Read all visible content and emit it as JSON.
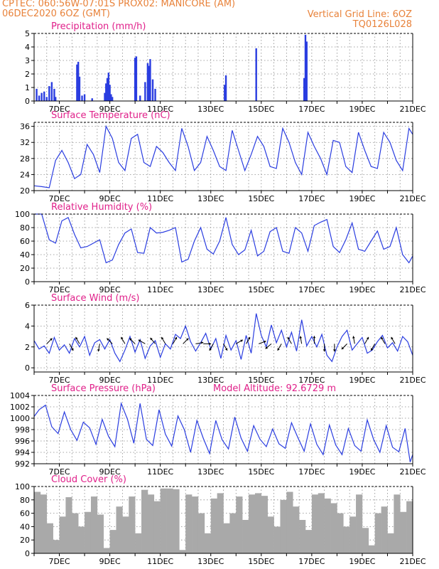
{
  "header": {
    "line1_left": "CPTEC:   060:56W-07:01S   PROX02: MANICORE (AM)",
    "line2_left": "06DEC2020 6OZ (GMT)",
    "line2_right": "Vertical Grid Line: 6OZ",
    "line3_right": "TQ0126L028"
  },
  "colors": {
    "header": "#e8823a",
    "title": "#e0208a",
    "series": "#2a3de0",
    "cloud": "#a9a9a9",
    "arrow": "#000000"
  },
  "chart_data": [
    {
      "type": "bar",
      "title": "Precipitation (mm/h)",
      "x_labels": [
        "7DEC",
        "9DEC",
        "11DEC",
        "13DEC",
        "15DEC",
        "17DEC",
        "19DEC",
        "21DEC"
      ],
      "ylim": [
        0,
        5
      ],
      "yticks": [
        "0",
        "1",
        "2",
        "3",
        "4",
        "5"
      ],
      "x": [
        6.1,
        6.2,
        6.3,
        6.4,
        6.5,
        6.6,
        6.7,
        6.8,
        6.85,
        7.7,
        7.75,
        7.8,
        7.9,
        8.0,
        8.3,
        8.8,
        8.85,
        8.9,
        8.95,
        9.0,
        9.05,
        9.1,
        10.0,
        10.05,
        10.2,
        10.4,
        10.5,
        10.55,
        10.6,
        10.7,
        10.8,
        13.55,
        13.6,
        14.8,
        16.7,
        16.75,
        16.8
      ],
      "values": [
        0.9,
        0.4,
        0.6,
        0.7,
        0.3,
        1.1,
        1.4,
        0.9,
        0.3,
        2.7,
        2.9,
        1.8,
        0.4,
        0.5,
        0.2,
        0.6,
        1.3,
        1.7,
        2.1,
        1.2,
        0.5,
        0.3,
        3.2,
        3.3,
        0.4,
        1.4,
        2.8,
        2.6,
        3.1,
        1.6,
        0.9,
        1.2,
        1.9,
        3.9,
        1.7,
        4.9,
        4.4
      ],
      "xlim": [
        6,
        21
      ]
    },
    {
      "type": "line",
      "title": "Surface Temperature (nC)",
      "x_labels": [
        "7DEC",
        "9DEC",
        "11DEC",
        "13DEC",
        "15DEC",
        "17DEC",
        "19DEC",
        "21DEC"
      ],
      "ylim": [
        20,
        37
      ],
      "yticks": [
        "20",
        "24",
        "28",
        "32",
        "36"
      ],
      "x": [
        6.0,
        6.3,
        6.6,
        6.85,
        7.1,
        7.35,
        7.6,
        7.85,
        8.1,
        8.35,
        8.6,
        8.85,
        9.1,
        9.35,
        9.6,
        9.85,
        10.1,
        10.35,
        10.6,
        10.85,
        11.1,
        11.35,
        11.6,
        11.85,
        12.1,
        12.35,
        12.6,
        12.85,
        13.1,
        13.35,
        13.6,
        13.85,
        14.1,
        14.35,
        14.6,
        14.85,
        15.1,
        15.35,
        15.6,
        15.85,
        16.1,
        16.35,
        16.6,
        16.85,
        17.1,
        17.35,
        17.6,
        17.85,
        18.1,
        18.35,
        18.6,
        18.85,
        19.1,
        19.35,
        19.6,
        19.85,
        20.1,
        20.35,
        20.6,
        20.85,
        21.0
      ],
      "values": [
        21.2,
        21,
        20.7,
        27.5,
        30,
        27,
        23,
        24,
        31.5,
        29,
        24.5,
        36,
        33,
        27,
        25,
        33,
        34,
        27,
        26,
        31,
        29.5,
        27,
        25,
        35.5,
        31,
        25,
        27,
        33.5,
        30,
        26,
        25,
        35,
        30,
        25,
        29,
        33.5,
        31,
        26,
        25.5,
        35.5,
        32,
        27,
        24,
        34.5,
        31,
        28,
        24,
        32.5,
        32,
        26,
        24.5,
        34.5,
        30,
        26,
        25.5,
        34.5,
        32,
        27.5,
        25,
        35.5,
        34
      ],
      "xlim": [
        6,
        21
      ]
    },
    {
      "type": "line",
      "title": "Relative Humidity (%)",
      "x_labels": [
        "7DEC",
        "9DEC",
        "11DEC",
        "13DEC",
        "15DEC",
        "17DEC",
        "19DEC",
        "21DEC"
      ],
      "ylim": [
        0,
        100
      ],
      "yticks": [
        "0",
        "20",
        "40",
        "60",
        "80",
        "100"
      ],
      "x": [
        6.0,
        6.3,
        6.6,
        6.85,
        7.1,
        7.35,
        7.6,
        7.85,
        8.1,
        8.35,
        8.6,
        8.85,
        9.1,
        9.35,
        9.6,
        9.85,
        10.1,
        10.35,
        10.6,
        10.85,
        11.1,
        11.35,
        11.6,
        11.85,
        12.1,
        12.35,
        12.6,
        12.85,
        13.1,
        13.35,
        13.6,
        13.85,
        14.1,
        14.35,
        14.6,
        14.85,
        15.1,
        15.35,
        15.6,
        15.85,
        16.1,
        16.35,
        16.6,
        16.85,
        17.1,
        17.35,
        17.6,
        17.85,
        18.1,
        18.35,
        18.6,
        18.85,
        19.1,
        19.35,
        19.6,
        19.85,
        20.1,
        20.35,
        20.6,
        20.85,
        21.0
      ],
      "values": [
        100,
        100,
        62,
        57,
        90,
        95,
        70,
        50,
        52,
        57,
        62,
        28,
        32,
        55,
        72,
        78,
        43,
        42,
        80,
        72,
        73,
        76,
        80,
        29,
        33,
        60,
        80,
        48,
        41,
        60,
        95,
        55,
        40,
        47,
        76,
        38,
        45,
        74,
        80,
        45,
        42,
        80,
        72,
        45,
        83,
        88,
        92,
        52,
        43,
        62,
        87,
        48,
        45,
        60,
        75,
        48,
        52,
        80,
        40,
        28,
        38
      ],
      "xlim": [
        6,
        21
      ]
    },
    {
      "type": "line",
      "title": "Surface Wind (m/s)",
      "x_labels": [
        "7DEC",
        "9DEC",
        "11DEC",
        "13DEC",
        "15DEC",
        "17DEC",
        "19DEC",
        "21DEC"
      ],
      "ylim": [
        -0.4,
        6
      ],
      "yticks": [
        "0",
        "2",
        "4",
        "6"
      ],
      "x": [
        6.0,
        6.2,
        6.4,
        6.6,
        6.8,
        7.0,
        7.2,
        7.4,
        7.6,
        7.8,
        8.0,
        8.2,
        8.4,
        8.6,
        8.8,
        9.0,
        9.2,
        9.4,
        9.6,
        9.8,
        10.0,
        10.2,
        10.4,
        10.6,
        10.8,
        11.0,
        11.2,
        11.4,
        11.6,
        11.8,
        12.0,
        12.2,
        12.4,
        12.6,
        12.8,
        13.0,
        13.2,
        13.4,
        13.6,
        13.8,
        14.0,
        14.2,
        14.4,
        14.6,
        14.8,
        15.0,
        15.2,
        15.4,
        15.6,
        15.8,
        16.0,
        16.2,
        16.4,
        16.6,
        16.8,
        17.0,
        17.2,
        17.4,
        17.6,
        17.8,
        18.0,
        18.2,
        18.4,
        18.6,
        18.8,
        19.0,
        19.2,
        19.4,
        19.6,
        19.8,
        20.0,
        20.2,
        20.4,
        20.6,
        20.8,
        21.0
      ],
      "values": [
        2.6,
        1.8,
        2.1,
        1.4,
        2.9,
        1.7,
        2.2,
        1.4,
        2.8,
        2.0,
        3.0,
        1.2,
        2.4,
        2.7,
        1.8,
        2.7,
        1.4,
        0.6,
        1.7,
        3.0,
        1.5,
        2.7,
        0.9,
        2.1,
        2.6,
        1.0,
        2.3,
        1.8,
        3.2,
        2.8,
        4.0,
        2.5,
        1.6,
        2.4,
        3.3,
        1.8,
        2.8,
        0.9,
        3.1,
        1.7,
        2.6,
        0.8,
        3.1,
        1.4,
        5.2,
        3.1,
        2.0,
        4.1,
        2.4,
        3.6,
        2.0,
        3.4,
        1.6,
        4.6,
        2.1,
        3.0,
        2.0,
        3.2,
        1.2,
        0.6,
        2.0,
        3.0,
        3.6,
        1.7,
        2.3,
        2.9,
        1.4,
        1.7,
        2.5,
        3.1,
        1.9,
        2.4,
        1.6,
        3.0,
        2.5,
        1.2
      ],
      "arrows_x": [
        6.5,
        7.4,
        7.8,
        8.6,
        9.1,
        9.6,
        10.0,
        10.4,
        10.8,
        11.2,
        11.5,
        11.9,
        12.4,
        12.7,
        13.1,
        13.5,
        14.0,
        14.4,
        14.9,
        15.4,
        15.8,
        16.2,
        16.6,
        17.1,
        17.5,
        17.9,
        18.4,
        18.7,
        19.1,
        19.5,
        19.9,
        20.3
      ],
      "arrows_dir": [
        45,
        300,
        120,
        260,
        135,
        120,
        135,
        150,
        130,
        120,
        60,
        45,
        10,
        0,
        240,
        300,
        30,
        60,
        20,
        220,
        240,
        120,
        100,
        90,
        270,
        270,
        225,
        100,
        60,
        240,
        120,
        120
      ],
      "xlim": [
        6,
        21
      ]
    },
    {
      "type": "line",
      "title": "Surface Pressure (hPa)",
      "annotation": "Model Altitude: 92.6729 m",
      "x_labels": [
        "7DEC",
        "9DEC",
        "11DEC",
        "13DEC",
        "15DEC",
        "17DEC",
        "19DEC",
        "21DEC"
      ],
      "ylim": [
        992,
        1004
      ],
      "yticks": [
        "992",
        "994",
        "996",
        "998",
        "1000",
        "1002",
        "1004"
      ],
      "x": [
        6.0,
        6.2,
        6.45,
        6.7,
        6.95,
        7.2,
        7.45,
        7.7,
        7.95,
        8.2,
        8.45,
        8.7,
        8.95,
        9.2,
        9.45,
        9.7,
        9.95,
        10.2,
        10.45,
        10.7,
        10.95,
        11.2,
        11.45,
        11.7,
        11.95,
        12.2,
        12.45,
        12.7,
        12.95,
        13.2,
        13.45,
        13.7,
        13.95,
        14.2,
        14.45,
        14.7,
        14.95,
        15.2,
        15.45,
        15.7,
        15.95,
        16.2,
        16.45,
        16.7,
        16.95,
        17.2,
        17.45,
        17.7,
        17.95,
        18.2,
        18.45,
        18.7,
        18.95,
        19.2,
        19.45,
        19.7,
        19.95,
        20.2,
        20.45,
        20.7,
        20.9,
        21.0
      ],
      "values": [
        1000.3,
        1001.5,
        1002.3,
        998.5,
        997.3,
        1001.1,
        998.0,
        996.1,
        999.3,
        998.3,
        995.4,
        999.8,
        996.8,
        995.0,
        1002.6,
        999.8,
        995.6,
        1002.6,
        996.3,
        995.2,
        1001.5,
        997.2,
        995.1,
        1000.4,
        998.0,
        994.0,
        999.6,
        996.5,
        993.8,
        999.6,
        996.2,
        994.6,
        1000.2,
        996.5,
        994.2,
        998.7,
        996.3,
        995.0,
        998.1,
        995.5,
        994.7,
        999.2,
        996.6,
        994.2,
        999.0,
        995.4,
        993.6,
        998.8,
        995.3,
        993.6,
        998.2,
        995.2,
        994.2,
        999.7,
        996.3,
        994.0,
        998.7,
        994.9,
        994.1,
        998.2,
        992.3,
        993.6
      ],
      "xlim": [
        6,
        21
      ]
    },
    {
      "type": "bar",
      "title": "Cloud Cover (%)",
      "x_labels": [
        "7DEC",
        "9DEC",
        "11DEC",
        "13DEC",
        "15DEC",
        "17DEC",
        "19DEC",
        "21DEC"
      ],
      "ylim": [
        0,
        100
      ],
      "yticks": [
        "0",
        "20",
        "40",
        "60",
        "80",
        "100"
      ],
      "x": [
        6.0,
        6.25,
        6.5,
        6.75,
        7.0,
        7.25,
        7.5,
        7.75,
        8.0,
        8.25,
        8.5,
        8.75,
        9.0,
        9.25,
        9.5,
        9.75,
        10.0,
        10.25,
        10.5,
        10.75,
        11.0,
        11.25,
        11.5,
        11.75,
        12.0,
        12.25,
        12.5,
        12.75,
        13.0,
        13.25,
        13.5,
        13.75,
        14.0,
        14.25,
        14.5,
        14.75,
        15.0,
        15.25,
        15.5,
        15.75,
        16.0,
        16.25,
        16.5,
        16.75,
        17.0,
        17.25,
        17.5,
        17.75,
        18.0,
        18.25,
        18.5,
        18.75,
        19.0,
        19.25,
        19.5,
        19.75,
        20.0,
        20.25,
        20.5,
        20.75
      ],
      "values": [
        92,
        88,
        45,
        20,
        55,
        84,
        60,
        40,
        62,
        85,
        58,
        8,
        35,
        70,
        55,
        85,
        30,
        95,
        88,
        78,
        97,
        97,
        96,
        5,
        88,
        85,
        60,
        30,
        82,
        90,
        45,
        60,
        85,
        50,
        88,
        90,
        86,
        55,
        40,
        80,
        92,
        70,
        50,
        35,
        88,
        90,
        82,
        75,
        60,
        40,
        55,
        88,
        38,
        12,
        60,
        70,
        30,
        88,
        62,
        78
      ],
      "xlim": [
        6,
        21
      ]
    }
  ]
}
